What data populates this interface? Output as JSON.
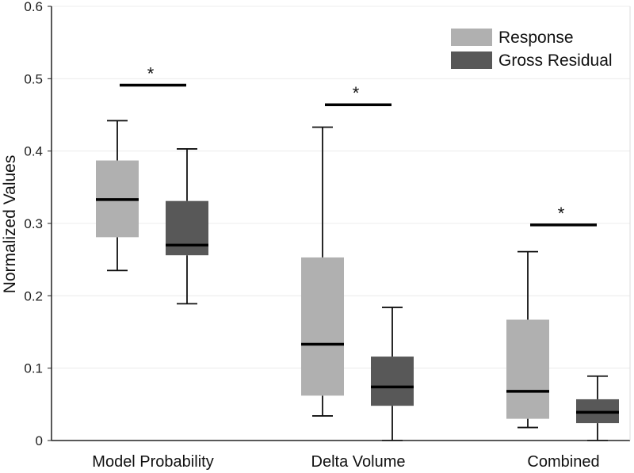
{
  "chart_data": {
    "type": "boxplot",
    "title": "",
    "ylabel": "Normalized Values",
    "xlabel": "",
    "ylim": [
      0,
      0.6
    ],
    "yticks": [
      0,
      0.1,
      0.2,
      0.3,
      0.4,
      0.5,
      0.6
    ],
    "ytick_labels": [
      "0",
      "0.1",
      "0.2",
      "0.3",
      "0.4",
      "0.5",
      "0.6"
    ],
    "grid": true,
    "legend_position": "top-right",
    "categories": [
      "Model Probability",
      "Delta Volume",
      "Combined"
    ],
    "series": [
      {
        "name": "Response",
        "color": "#b0b0b0",
        "boxes": [
          {
            "whisker_low": 0.235,
            "q1": 0.281,
            "median": 0.333,
            "q3": 0.387,
            "whisker_high": 0.442
          },
          {
            "whisker_low": 0.034,
            "q1": 0.062,
            "median": 0.133,
            "q3": 0.253,
            "whisker_high": 0.433
          },
          {
            "whisker_low": 0.018,
            "q1": 0.03,
            "median": 0.068,
            "q3": 0.167,
            "whisker_high": 0.261
          }
        ]
      },
      {
        "name": "Gross Residual",
        "color": "#585858",
        "boxes": [
          {
            "whisker_low": 0.189,
            "q1": 0.256,
            "median": 0.27,
            "q3": 0.331,
            "whisker_high": 0.403
          },
          {
            "whisker_low": 0.0,
            "q1": 0.048,
            "median": 0.074,
            "q3": 0.116,
            "whisker_high": 0.184
          },
          {
            "whisker_low": 0.0,
            "q1": 0.024,
            "median": 0.039,
            "q3": 0.057,
            "whisker_high": 0.089
          }
        ]
      }
    ],
    "significance": [
      {
        "category_index": 0,
        "y": 0.491,
        "label": "*"
      },
      {
        "category_index": 1,
        "y": 0.464,
        "label": "*"
      },
      {
        "category_index": 2,
        "y": 0.298,
        "label": "*"
      }
    ]
  }
}
